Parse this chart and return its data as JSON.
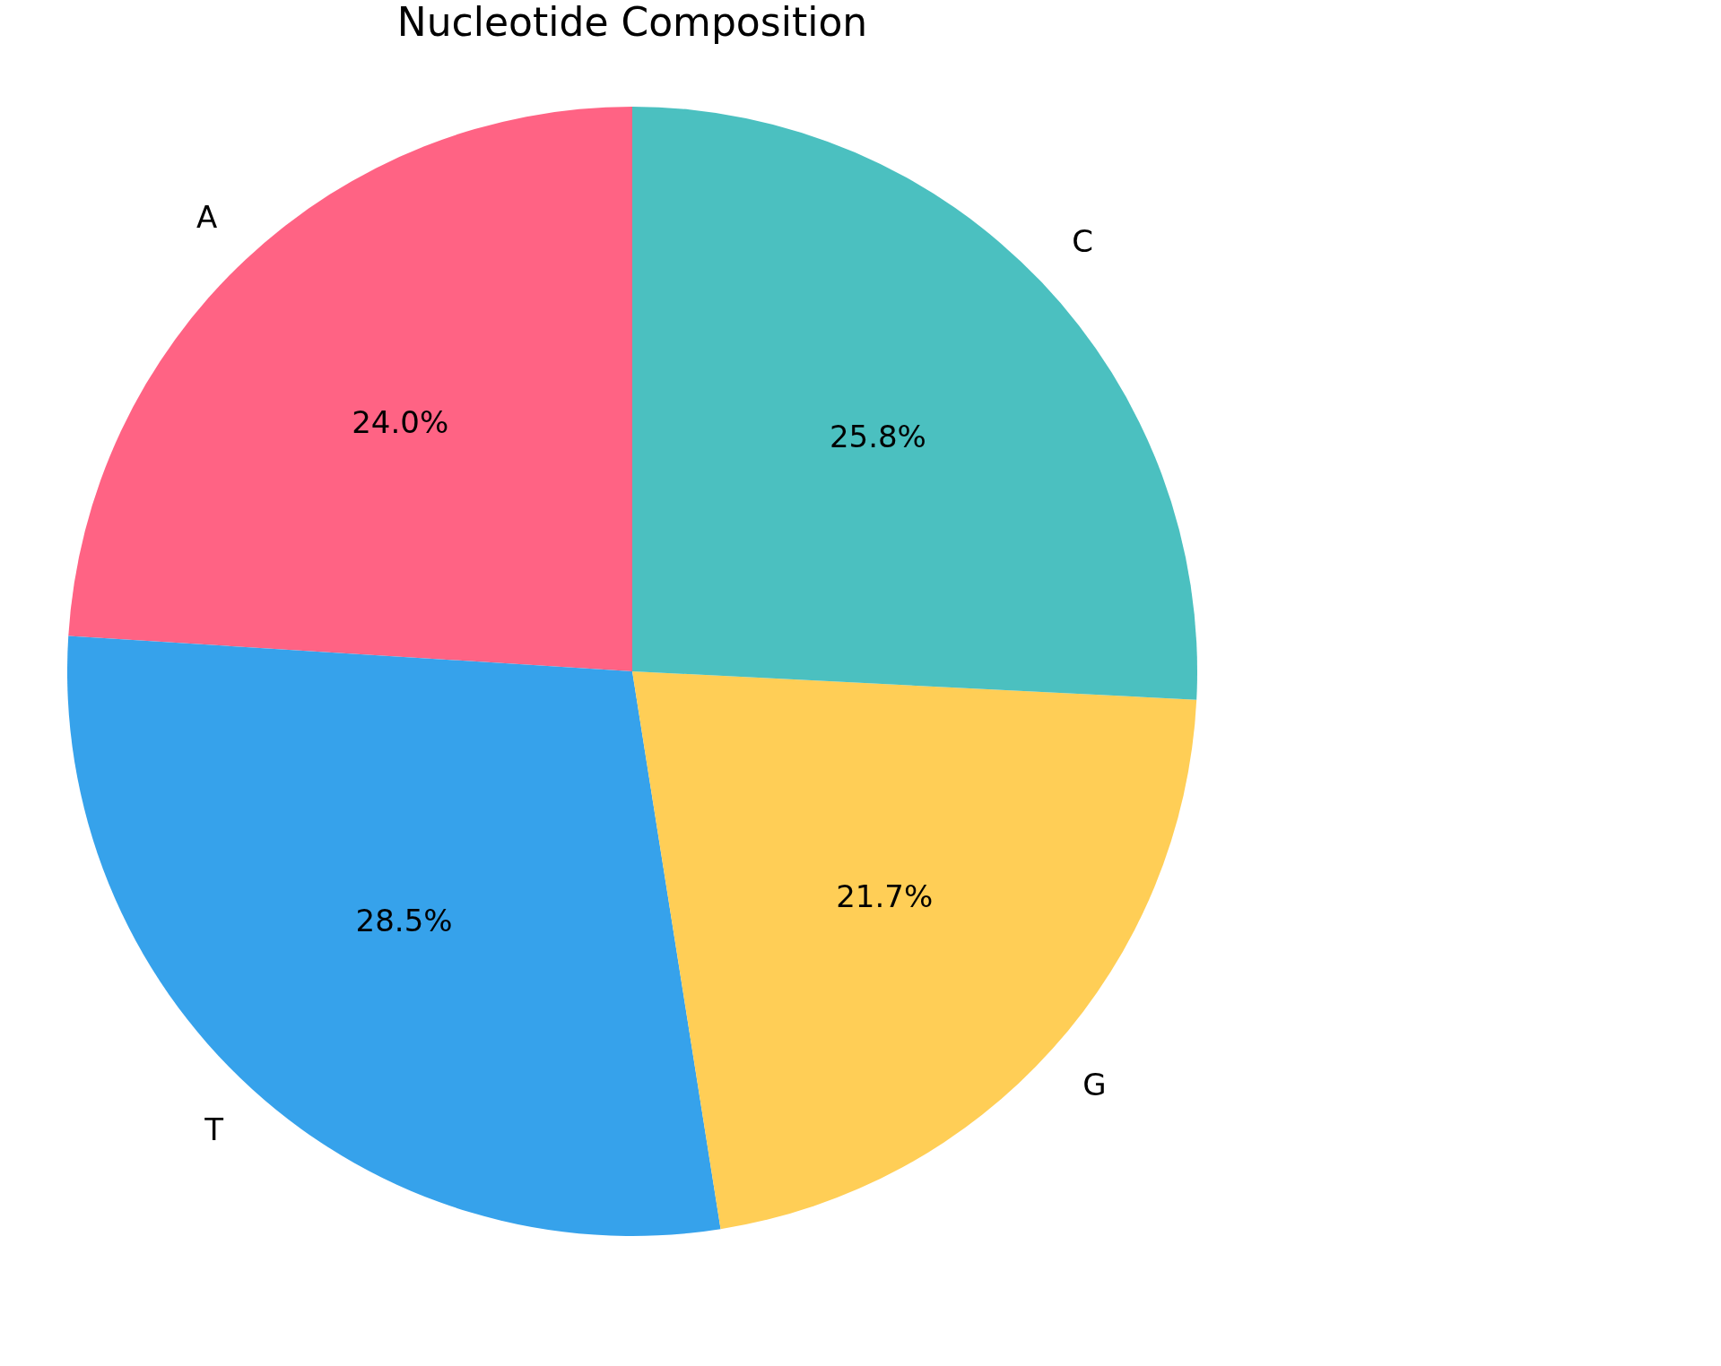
{
  "chart_data": {
    "type": "pie",
    "title": "Nucleotide Composition",
    "categories": [
      "A",
      "T",
      "G",
      "C"
    ],
    "values": [
      24.0,
      28.5,
      21.7,
      25.8
    ],
    "value_labels": [
      "24.0%",
      "28.5%",
      "21.7%",
      "25.8%"
    ],
    "colors": [
      "#ff6384",
      "#36a2eb",
      "#ffce56",
      "#4bc0c0"
    ],
    "legend": false
  }
}
